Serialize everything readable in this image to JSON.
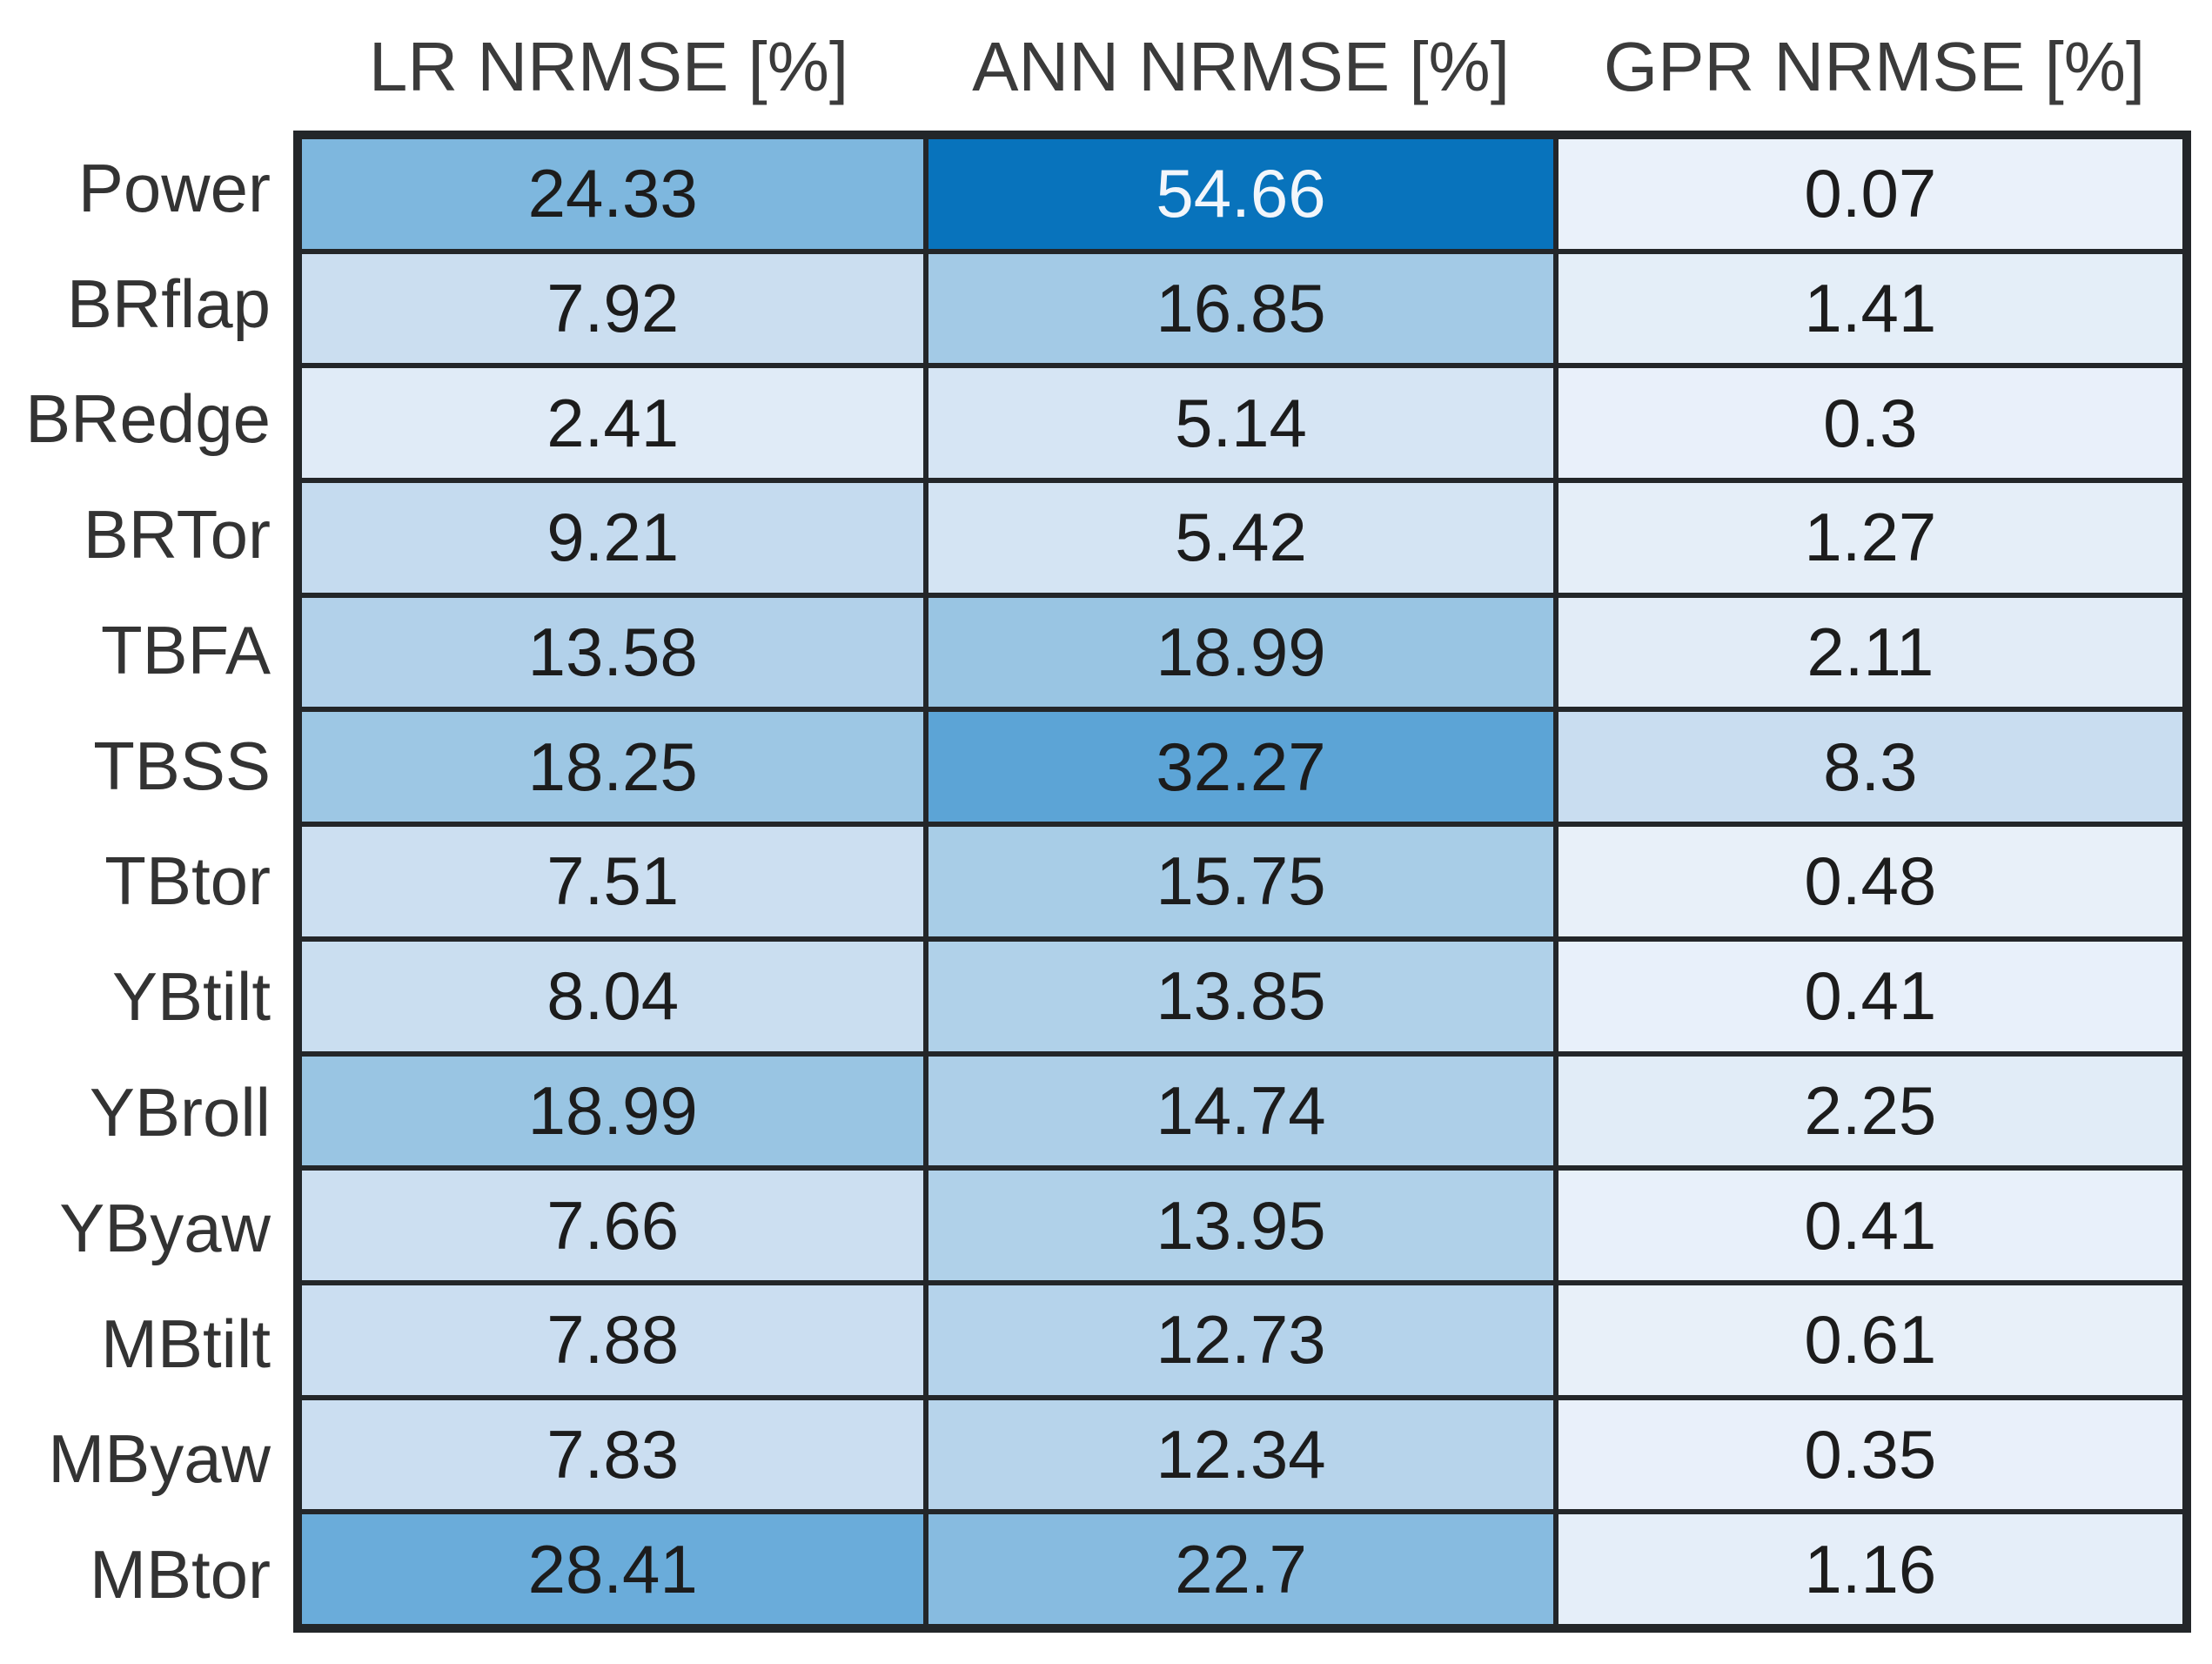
{
  "chart_data": {
    "type": "heatmap",
    "title": "",
    "columns": [
      "LR NRMSE [%]",
      "ANN NRMSE [%]",
      "GPR NRMSE [%]"
    ],
    "rows": [
      "Power",
      "BRflap",
      "BRedge",
      "BRTor",
      "TBFA",
      "TBSS",
      "TBtor",
      "YBtilt",
      "YBroll",
      "YByaw",
      "MBtilt",
      "MByaw",
      "MBtor"
    ],
    "values": [
      [
        24.33,
        54.66,
        0.07
      ],
      [
        7.92,
        16.85,
        1.41
      ],
      [
        2.41,
        5.14,
        0.3
      ],
      [
        9.21,
        5.42,
        1.27
      ],
      [
        13.58,
        18.99,
        2.11
      ],
      [
        18.25,
        32.27,
        8.3
      ],
      [
        7.51,
        15.75,
        0.48
      ],
      [
        8.04,
        13.85,
        0.41
      ],
      [
        18.99,
        14.74,
        2.25
      ],
      [
        7.66,
        13.95,
        0.41
      ],
      [
        7.88,
        12.73,
        0.61
      ],
      [
        7.83,
        12.34,
        0.35
      ],
      [
        28.41,
        22.7,
        1.16
      ]
    ],
    "value_unit": "%",
    "value_range": [
      0,
      54.66
    ],
    "legend": "none",
    "grid_on": true,
    "colormap": {
      "stops": [
        {
          "value": 0,
          "color": "#eaf1fa"
        },
        {
          "value": 8.3,
          "color": "#c9ddf0"
        },
        {
          "value": 18.25,
          "color": "#9dc7e4"
        },
        {
          "value": 28.41,
          "color": "#6aacda"
        },
        {
          "value": 54.66,
          "color": "#0873bc"
        }
      ],
      "dark_text_color": "#1c1c1c",
      "light_text_color": "#f2f6fb",
      "light_text_luminance_threshold": 0.45
    },
    "grid_line_color": "#232629",
    "header_text_color": "#3b3b3b",
    "row_label_color": "#333333"
  }
}
